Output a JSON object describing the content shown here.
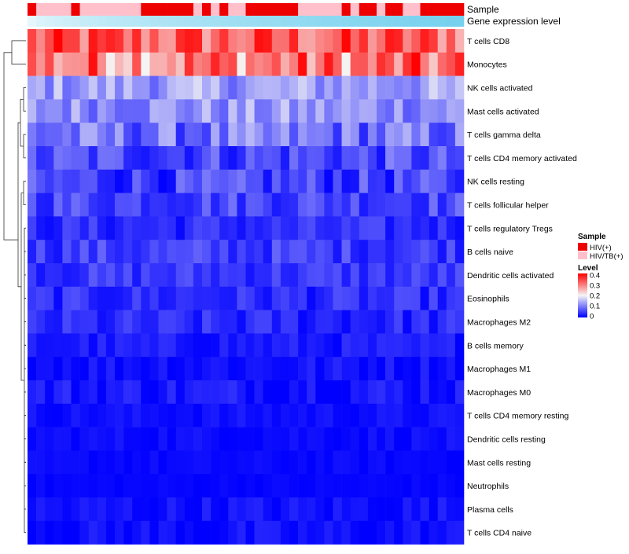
{
  "chart_data": {
    "type": "heatmap",
    "title": "",
    "annotation_tracks": [
      {
        "name": "Sample",
        "label": "Sample"
      },
      {
        "name": "Gene expression level",
        "label": "Gene expression level"
      }
    ],
    "rows": [
      "T cells CD8",
      "Monocytes",
      "NK cells activated",
      "Mast cells activated",
      "T cells gamma delta",
      "T cells CD4 memory activated",
      "NK cells resting",
      "T cells follicular helper",
      "T cells regulatory  Tregs",
      "B cells naive",
      "Dendritic cells activated",
      "Eosinophils",
      "Macrophages M2",
      "B cells memory",
      "Macrophages M1",
      "Macrophages M0",
      "T cells CD4 memory resting",
      "Dendritic cells resting",
      "Mast cells resting",
      "Neutrophils",
      "Plasma cells",
      "T cells CD4 naive"
    ],
    "n_columns": 50,
    "sample_groups": [
      "HIV(+)",
      "HIV/TB(+)",
      "HIV/TB(+)",
      "HIV/TB(+)",
      "HIV/TB(+)",
      "HIV(+)",
      "HIV/TB(+)",
      "HIV/TB(+)",
      "HIV/TB(+)",
      "HIV/TB(+)",
      "HIV/TB(+)",
      "HIV/TB(+)",
      "HIV/TB(+)",
      "HIV(+)",
      "HIV(+)",
      "HIV(+)",
      "HIV(+)",
      "HIV(+)",
      "HIV(+)",
      "HIV/TB(+)",
      "HIV(+)",
      "HIV/TB(+)",
      "HIV(+)",
      "HIV/TB(+)",
      "HIV/TB(+)",
      "HIV(+)",
      "HIV(+)",
      "HIV(+)",
      "HIV(+)",
      "HIV(+)",
      "HIV(+)",
      "HIV/TB(+)",
      "HIV/TB(+)",
      "HIV/TB(+)",
      "HIV/TB(+)",
      "HIV/TB(+)",
      "HIV(+)",
      "HIV/TB(+)",
      "HIV(+)",
      "HIV(+)",
      "HIV/TB(+)",
      "HIV(+)",
      "HIV(+)",
      "HIV/TB(+)",
      "HIV/TB(+)",
      "HIV(+)",
      "HIV(+)",
      "HIV(+)",
      "HIV(+)",
      "HIV(+)"
    ],
    "row_baselines": [
      0.32,
      0.3,
      0.13,
      0.12,
      0.09,
      0.06,
      0.05,
      0.06,
      0.035,
      0.05,
      0.045,
      0.035,
      0.03,
      0.02,
      0.015,
      0.02,
      0.012,
      0.01,
      0.006,
      0.004,
      0.012,
      0.01
    ],
    "row_spreads": [
      0.08,
      0.1,
      0.05,
      0.05,
      0.06,
      0.05,
      0.05,
      0.04,
      0.03,
      0.035,
      0.03,
      0.03,
      0.03,
      0.02,
      0.02,
      0.025,
      0.012,
      0.012,
      0.008,
      0.006,
      0.02,
      0.02
    ],
    "color_scale": {
      "min": 0,
      "max": 0.4,
      "low_color": "#0000ff",
      "mid_color": "#f5f5f5",
      "high_color": "#ff0000",
      "ticks": [
        "0.4",
        "0.3",
        "0.2",
        "0.1",
        "0"
      ]
    },
    "legend": {
      "sample_title": "Sample",
      "sample_entries": [
        {
          "label": "HIV(+)",
          "color": "#ee0000"
        },
        {
          "label": "HIV/TB(+)",
          "color": "#ffc0cb"
        }
      ],
      "level_title": "Level",
      "placement": "right"
    },
    "expression_track_colors": [
      "#e6f7fc",
      "#76d1ee"
    ],
    "dendrogram": "row dendrogram on left"
  }
}
